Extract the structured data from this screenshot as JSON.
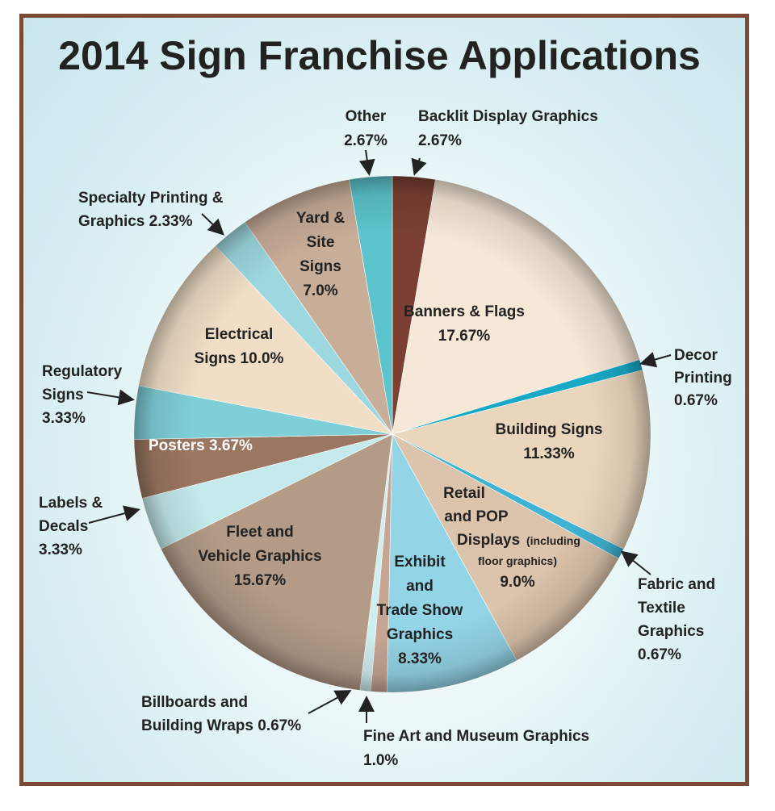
{
  "chart_data": {
    "type": "pie",
    "title": "2014 Sign Franchise Applications",
    "slices": [
      {
        "label": "Backlit Display Graphics",
        "value": 2.67,
        "value_text": "2.67%",
        "color": "#7b3f33"
      },
      {
        "label": "Banners & Flags",
        "value": 17.67,
        "value_text": "17.67%",
        "color": "#f6e8d7"
      },
      {
        "label": "Decor Printing",
        "value": 0.67,
        "value_text": "0.67%",
        "color": "#19a9c6"
      },
      {
        "label": "Building Signs",
        "value": 11.33,
        "value_text": "11.33%",
        "color": "#ead6bd"
      },
      {
        "label": "Fabric and Textile Graphics",
        "value": 0.67,
        "value_text": "0.67%",
        "color": "#3fb4d2"
      },
      {
        "label": "Retail and POP Displays",
        "label_note": "(including floor graphics)",
        "value": 9.0,
        "value_text": "9.0%",
        "color": "#dcc3ab"
      },
      {
        "label": "Exhibit and Trade Show Graphics",
        "value": 8.33,
        "value_text": "8.33%",
        "color": "#93d4e6"
      },
      {
        "label": "Fine Art and Museum Graphics",
        "value": 1.0,
        "value_text": "1.0%",
        "color": "#c6a592"
      },
      {
        "label": "Billboards and Building Wraps",
        "value": 0.67,
        "value_text": "0.67%",
        "color": "#cfeef0"
      },
      {
        "label": "Fleet and Vehicle Graphics",
        "value": 15.67,
        "value_text": "15.67%",
        "color": "#b39b88"
      },
      {
        "label": "Labels & Decals",
        "value": 3.33,
        "value_text": "3.33%",
        "color": "#c4eaec"
      },
      {
        "label": "Posters",
        "value": 3.67,
        "value_text": "3.67%",
        "color": "#9b7761"
      },
      {
        "label": "Regulatory Signs",
        "value": 3.33,
        "value_text": "3.33%",
        "color": "#7ecfd8"
      },
      {
        "label": "Electrical Signs",
        "value": 10.0,
        "value_text": "10.0%",
        "color": "#f0dec6"
      },
      {
        "label": "Specialty Printing & Graphics",
        "value": 2.33,
        "value_text": "2.33%",
        "color": "#9dd8e0"
      },
      {
        "label": "Yard & Site Signs",
        "value": 7.0,
        "value_text": "7.0%",
        "color": "#c8ad98"
      },
      {
        "label": "Other",
        "value": 2.67,
        "value_text": "2.67%",
        "color": "#5cc4cd"
      }
    ],
    "legend": "none",
    "start_angle_note": "first slice starts at 12 o'clock, clockwise"
  },
  "labels": [
    {
      "lines": [
        "Backlit Display Graphics",
        "2.67%"
      ]
    },
    {
      "lines": [
        "Banners & Flags",
        "17.67%"
      ]
    },
    {
      "lines": [
        "Decor",
        "Printing",
        "0.67%"
      ]
    },
    {
      "lines": [
        "Building Signs",
        "11.33%"
      ]
    },
    {
      "lines": [
        "Fabric and",
        "Textile",
        "Graphics",
        "0.67%"
      ]
    },
    {
      "lines": [
        "Retail",
        "and POP",
        "Displays",
        "(including",
        "floor graphics)",
        "9.0%"
      ]
    },
    {
      "lines": [
        "Exhibit",
        "and",
        "Trade Show",
        "Graphics",
        "8.33%"
      ]
    },
    {
      "lines": [
        "Fine Art and Museum Graphics",
        "1.0%"
      ]
    },
    {
      "lines": [
        "Billboards and",
        "Building Wraps 0.67%"
      ]
    },
    {
      "lines": [
        "Fleet and",
        "Vehicle Graphics",
        "15.67%"
      ]
    },
    {
      "lines": [
        "Labels &",
        "Decals",
        "3.33%"
      ]
    },
    {
      "lines": [
        "Posters 3.67%"
      ]
    },
    {
      "lines": [
        "Regulatory",
        "Signs",
        "3.33%"
      ]
    },
    {
      "lines": [
        "Electrical",
        "Signs 10.0%"
      ]
    },
    {
      "lines": [
        "Specialty Printing &",
        "Graphics 2.33%"
      ]
    },
    {
      "lines": [
        "Yard &",
        "Site",
        "Signs",
        "7.0%"
      ]
    },
    {
      "lines": [
        "Other",
        "2.67%"
      ]
    }
  ]
}
